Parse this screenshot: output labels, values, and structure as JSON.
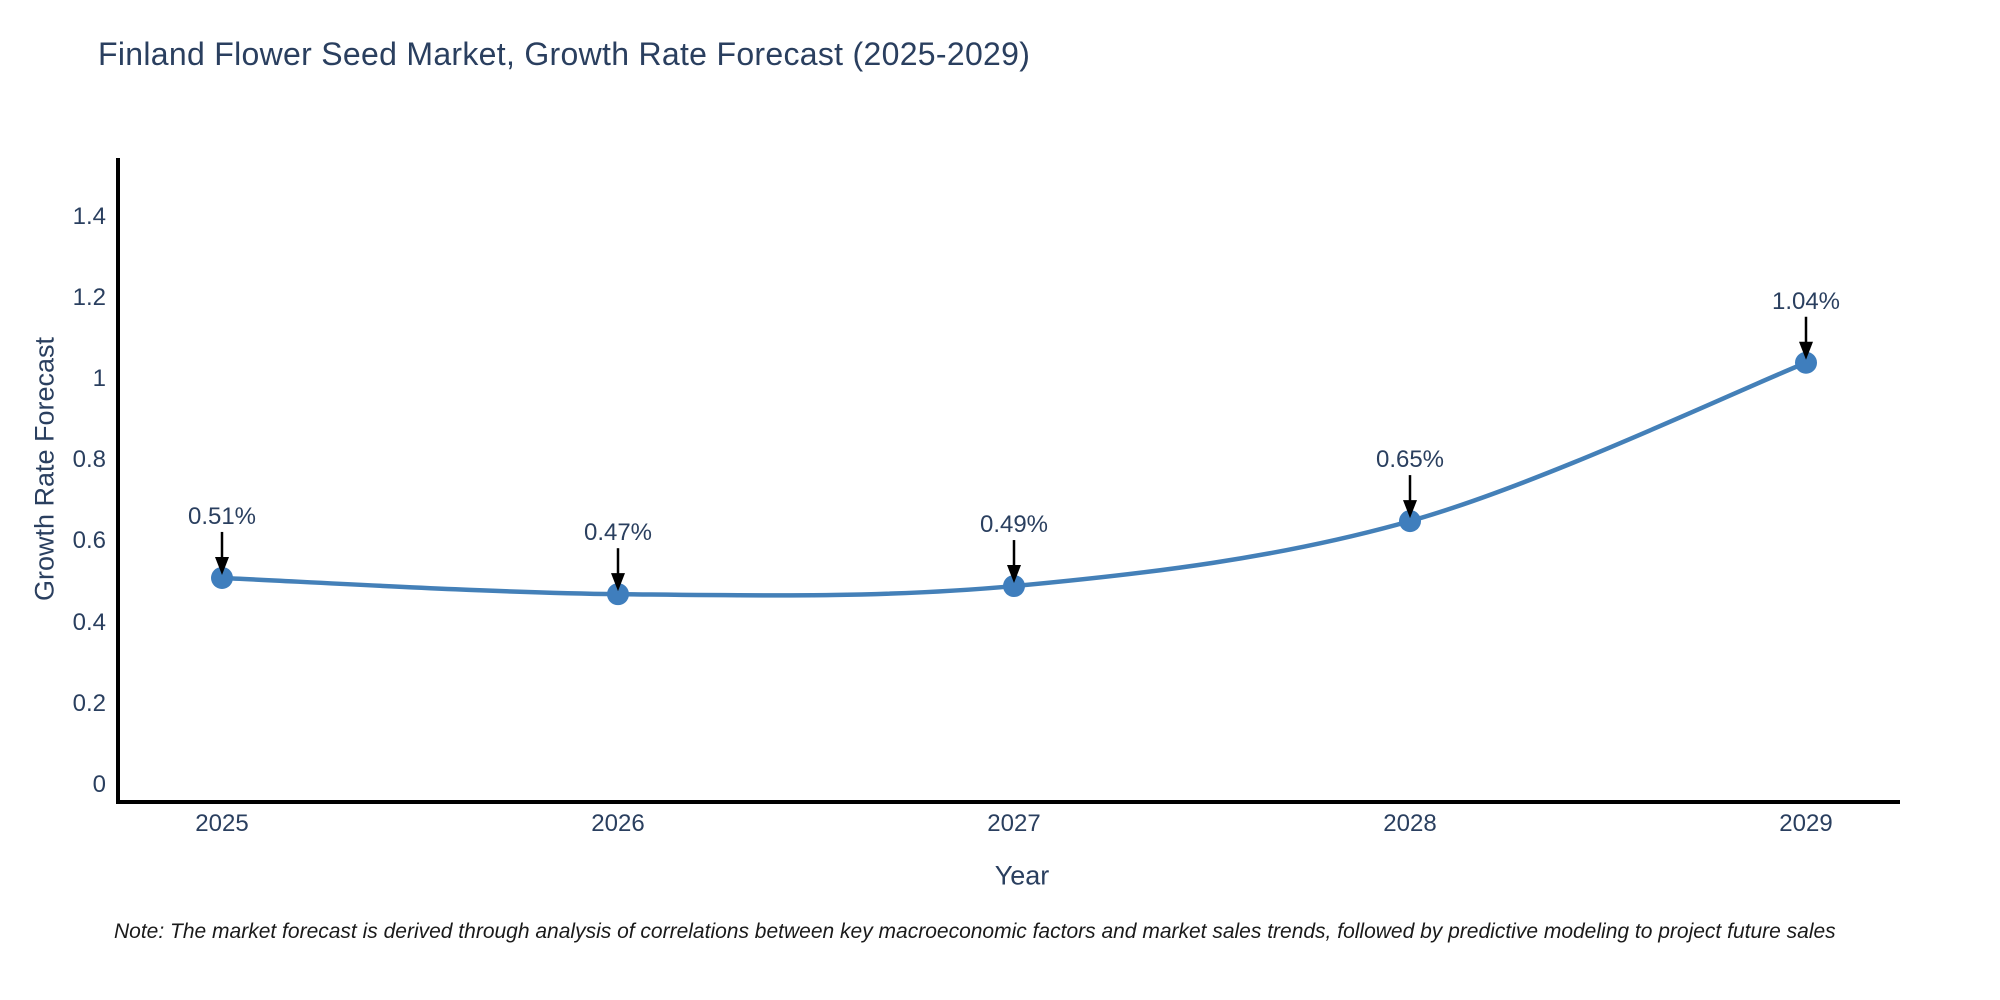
{
  "title": "Finland Flower Seed Market, Growth Rate Forecast (2025-2029)",
  "note": "Note: The market forecast is derived through analysis of correlations between key macroeconomic factors and market sales trends, followed by predictive modeling to project future sales",
  "colors": {
    "background": "#ffffff",
    "line": "#4480b8",
    "marker": "#3f7ebd",
    "axis": "#000000",
    "arrow": "#000000",
    "text": "#2a3f5f",
    "note_text": "#1a1a1a"
  },
  "chart_data": {
    "type": "line",
    "title": "Finland Flower Seed Market, Growth Rate Forecast (2025-2029)",
    "xlabel": "Year",
    "ylabel": "Growth Rate Forecast",
    "categories": [
      "2025",
      "2026",
      "2027",
      "2028",
      "2029"
    ],
    "values": [
      0.51,
      0.47,
      0.49,
      0.65,
      1.04
    ],
    "point_labels": [
      "0.51%",
      "0.47%",
      "0.49%",
      "0.65%",
      "1.04%"
    ],
    "yticks": [
      0,
      0.2,
      0.4,
      0.6,
      0.8,
      1.0,
      1.2,
      1.4
    ],
    "ytick_labels": [
      "0",
      "0.2",
      "0.4",
      "0.6",
      "0.8",
      "1",
      "1.2",
      "1.4"
    ],
    "ylim": [
      0,
      1.45
    ],
    "grid": false,
    "legend_position": "none",
    "line_shape": "spline",
    "annotation_style": "arrow-down-to-point"
  }
}
